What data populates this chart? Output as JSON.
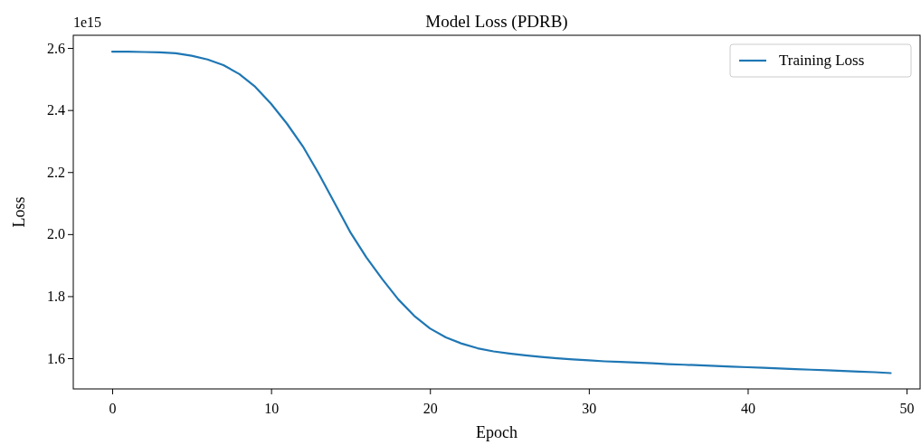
{
  "chart_data": {
    "type": "line",
    "title": "Model Loss (PDRB)",
    "xlabel": "Epoch",
    "ylabel": "Loss",
    "annotations": [
      "1e15"
    ],
    "x": [
      0,
      1,
      2,
      3,
      4,
      5,
      6,
      7,
      8,
      9,
      10,
      11,
      12,
      13,
      14,
      15,
      16,
      17,
      18,
      19,
      20,
      21,
      22,
      23,
      24,
      25,
      26,
      27,
      28,
      29,
      30,
      31,
      32,
      33,
      34,
      35,
      36,
      37,
      38,
      39,
      40,
      41,
      42,
      43,
      44,
      45,
      46,
      47,
      48,
      49
    ],
    "series": [
      {
        "name": "Training Loss",
        "color": "#1f77b4",
        "values": [
          2.588,
          2.588,
          2.587,
          2.586,
          2.583,
          2.575,
          2.563,
          2.545,
          2.516,
          2.475,
          2.42,
          2.356,
          2.283,
          2.195,
          2.1,
          2.005,
          1.925,
          1.855,
          1.79,
          1.737,
          1.696,
          1.667,
          1.647,
          1.632,
          1.622,
          1.615,
          1.609,
          1.604,
          1.6,
          1.596,
          1.593,
          1.59,
          1.588,
          1.586,
          1.584,
          1.581,
          1.579,
          1.577,
          1.575,
          1.573,
          1.571,
          1.569,
          1.567,
          1.565,
          1.563,
          1.561,
          1.559,
          1.557,
          1.555,
          1.552
        ]
      }
    ],
    "xlim": [
      -2.45,
      50.85
    ],
    "ylim": [
      1.501,
      2.641
    ],
    "xticks": [
      0,
      10,
      20,
      30,
      40,
      50
    ],
    "yticks": [
      1.6,
      1.8,
      {
        "value": 2.0,
        "label": "2.0"
      },
      2.2,
      2.4,
      2.6
    ],
    "legend": "top right",
    "marker": "none",
    "line_style": "solid",
    "grid": false
  }
}
